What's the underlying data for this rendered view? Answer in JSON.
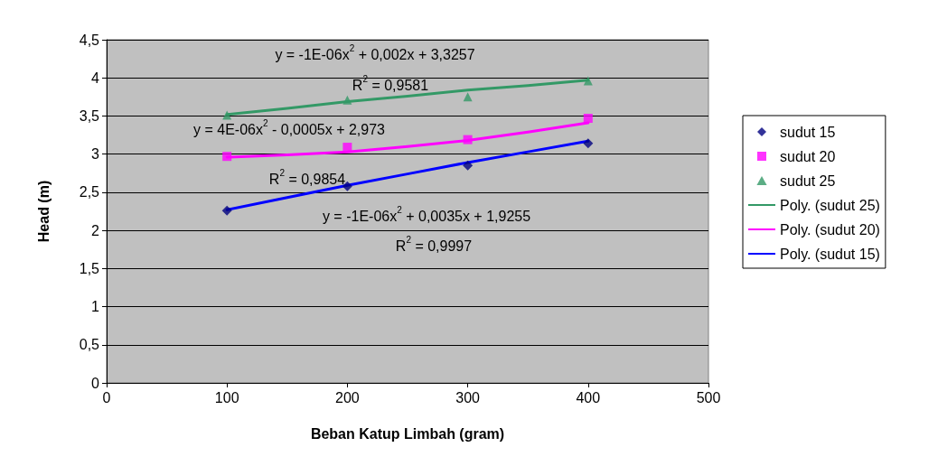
{
  "chart_data": {
    "type": "scatter",
    "xlabel": "Beban Katup Limbah (gram)",
    "ylabel": "Head (m)",
    "xlim": [
      0,
      500
    ],
    "xticks": [
      0,
      100,
      200,
      300,
      400,
      500
    ],
    "ylim": [
      0,
      4.5
    ],
    "yticks": [
      {
        "value": 0,
        "label": "0"
      },
      {
        "value": 0.5,
        "label": "0,5"
      },
      {
        "value": 1,
        "label": "1"
      },
      {
        "value": 1.5,
        "label": "1,5"
      },
      {
        "value": 2,
        "label": "2"
      },
      {
        "value": 2.5,
        "label": "2,5"
      },
      {
        "value": 3,
        "label": "3"
      },
      {
        "value": 3.5,
        "label": "3,5"
      },
      {
        "value": 4,
        "label": "4"
      },
      {
        "value": 4.5,
        "label": "4,5"
      }
    ],
    "grid": "y",
    "legend": "right",
    "series": [
      {
        "name": "sudut 15",
        "type": "scatter",
        "marker": "diamond",
        "color": "#000080",
        "x": [
          100,
          200,
          300,
          400
        ],
        "values": [
          2.26,
          2.58,
          2.85,
          3.14
        ]
      },
      {
        "name": "sudut 20",
        "type": "scatter",
        "marker": "square",
        "color": "#ff00ff",
        "x": [
          100,
          200,
          300,
          400
        ],
        "values": [
          2.97,
          3.09,
          3.19,
          3.47
        ]
      },
      {
        "name": "sudut 25",
        "type": "scatter",
        "marker": "triangle",
        "color": "#339966",
        "x": [
          100,
          200,
          300,
          400
        ],
        "values": [
          3.51,
          3.71,
          3.75,
          3.96
        ]
      },
      {
        "name": "Poly. (sudut 25)",
        "type": "line",
        "marker": "none",
        "line_style": "solid",
        "color": "#339966",
        "x": [
          100,
          150,
          200,
          250,
          300,
          350,
          400
        ],
        "values": [
          3.52,
          3.6,
          3.69,
          3.76,
          3.84,
          3.9,
          3.97
        ]
      },
      {
        "name": "Poly. (sudut 20)",
        "type": "line",
        "marker": "none",
        "line_style": "solid",
        "color": "#ff00ff",
        "x": [
          100,
          150,
          200,
          250,
          300,
          350,
          400
        ],
        "values": [
          2.96,
          2.99,
          3.03,
          3.1,
          3.18,
          3.29,
          3.41
        ]
      },
      {
        "name": "Poly. (sudut 15)",
        "type": "line",
        "marker": "none",
        "line_style": "solid",
        "color": "#0000ff",
        "x": [
          100,
          150,
          200,
          250,
          300,
          350,
          400
        ],
        "values": [
          2.27,
          2.43,
          2.59,
          2.74,
          2.89,
          3.03,
          3.17
        ]
      }
    ],
    "annotations": [
      "y = -1E-06x$^{2}$ + 0,002x + 3,3257",
      "R$^{2}$ = 0,9581",
      "y = 4E-06x$^{2}$ - 0,0005x + 2,973",
      "R$^{2}$ = 0,9854",
      "y = -1E-06x$^{2}$ + 0,0035x + 1,9255",
      "R$^{2}$ = 0,9997"
    ]
  }
}
